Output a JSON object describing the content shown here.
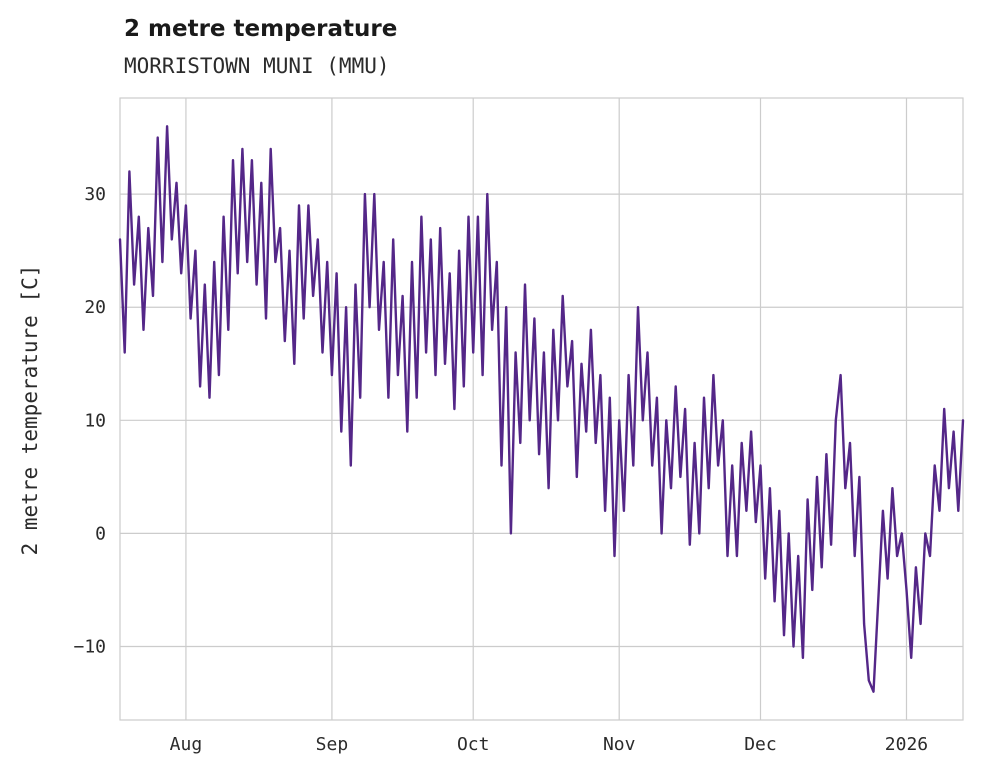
{
  "header": {
    "title": "2 metre temperature",
    "subtitle": "MORRISTOWN MUNI (MMU)"
  },
  "chart_data": {
    "type": "line",
    "title": "2 metre temperature",
    "subtitle": "MORRISTOWN MUNI (MMU)",
    "ylabel": "2 metre temperature [C]",
    "xlabel": "",
    "line_color": "#542788",
    "grid_color": "#cccccc",
    "grid": true,
    "legend": "none",
    "x_start_date": "2025-07-18",
    "x_end_date": "2026-01-13",
    "xlim": [
      0,
      179
    ],
    "ylim": [
      -16.5,
      38.5
    ],
    "x_ticks": [
      {
        "day": 14,
        "label": "Aug"
      },
      {
        "day": 45,
        "label": "Sep"
      },
      {
        "day": 75,
        "label": "Oct"
      },
      {
        "day": 106,
        "label": "Nov"
      },
      {
        "day": 136,
        "label": "Dec"
      },
      {
        "day": 167,
        "label": "2026"
      }
    ],
    "y_ticks": [
      {
        "value": 30,
        "label": "30"
      },
      {
        "value": 20,
        "label": "20"
      },
      {
        "value": 10,
        "label": "10"
      },
      {
        "value": 0,
        "label": "0"
      },
      {
        "value": -10,
        "label": "−10"
      }
    ],
    "x_unit": "days since 2025-07-18",
    "values": [
      26,
      16,
      32,
      22,
      28,
      18,
      27,
      21,
      35,
      24,
      36,
      26,
      31,
      23,
      29,
      19,
      25,
      13,
      22,
      12,
      24,
      14,
      28,
      18,
      33,
      23,
      34,
      24,
      33,
      22,
      31,
      19,
      34,
      24,
      27,
      17,
      25,
      15,
      29,
      19,
      29,
      21,
      26,
      16,
      24,
      14,
      23,
      9,
      20,
      6,
      22,
      12,
      30,
      20,
      30,
      18,
      24,
      12,
      26,
      14,
      21,
      9,
      24,
      12,
      28,
      16,
      26,
      14,
      27,
      15,
      23,
      11,
      25,
      13,
      28,
      16,
      28,
      14,
      30,
      18,
      24,
      6,
      20,
      0,
      16,
      8,
      22,
      10,
      19,
      7,
      16,
      4,
      18,
      10,
      21,
      13,
      17,
      5,
      15,
      9,
      18,
      8,
      14,
      2,
      12,
      -2,
      10,
      2,
      14,
      6,
      20,
      10,
      16,
      6,
      12,
      0,
      10,
      4,
      13,
      5,
      11,
      -1,
      8,
      0,
      12,
      4,
      14,
      6,
      10,
      -2,
      6,
      -2,
      8,
      2,
      9,
      1,
      6,
      -4,
      4,
      -6,
      2,
      -9,
      0,
      -10,
      -2,
      -11,
      3,
      -5,
      5,
      -3,
      7,
      -1,
      10,
      14,
      4,
      8,
      -2,
      5,
      -8,
      -13,
      -14,
      -6,
      2,
      -4,
      4,
      -2,
      0,
      -5,
      -11,
      -3,
      -8,
      0,
      -2,
      6,
      2,
      11,
      4,
      9,
      2,
      10
    ]
  }
}
